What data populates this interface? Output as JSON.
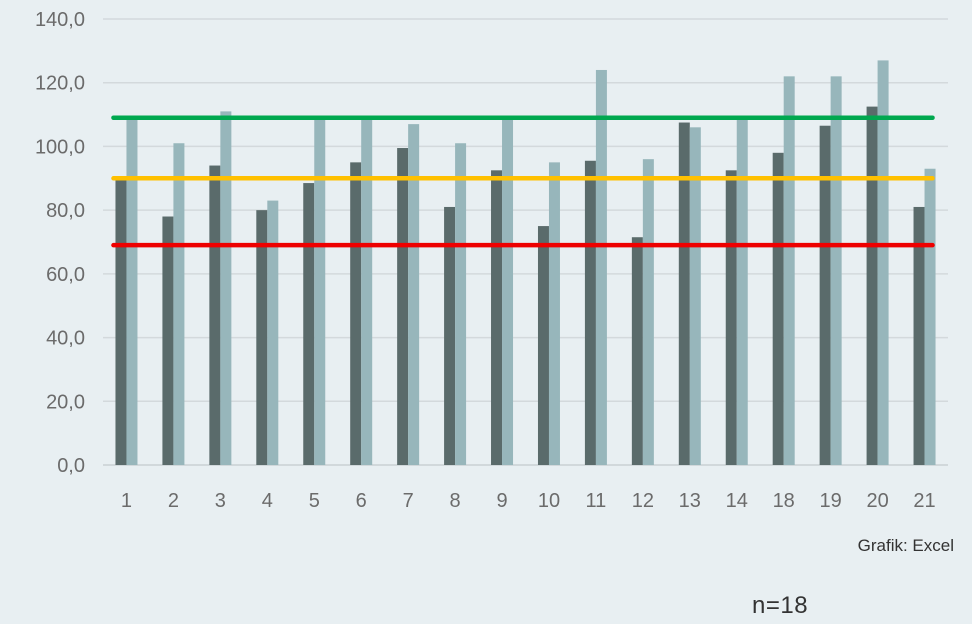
{
  "chart_data": {
    "type": "bar",
    "categories": [
      "1",
      "2",
      "3",
      "4",
      "5",
      "6",
      "7",
      "8",
      "9",
      "10",
      "11",
      "12",
      "13",
      "14",
      "18",
      "19",
      "20",
      "21"
    ],
    "series": [
      {
        "color": "#5a6b6b",
        "values": [
          90,
          78,
          94,
          80,
          88.5,
          95,
          99.5,
          81,
          92.5,
          75,
          95.5,
          71.5,
          107.5,
          92.5,
          98,
          106.5,
          112.5,
          81
        ]
      },
      {
        "color": "#97b6bb",
        "values": [
          109,
          101,
          111,
          83,
          109,
          109,
          107,
          101,
          109,
          95,
          124,
          96,
          106,
          109,
          122,
          122,
          127,
          93
        ]
      }
    ],
    "reference_lines": [
      {
        "value": 109,
        "color": "#00a84f"
      },
      {
        "value": 90,
        "color": "#ffc000"
      },
      {
        "value": 69,
        "color": "#ee0000"
      }
    ],
    "y_ticks": [
      "0,0",
      "20,0",
      "40,0",
      "60,0",
      "80,0",
      "100,0",
      "120,0",
      "140,0"
    ],
    "ylim": [
      0,
      140
    ],
    "grid": true,
    "xlabel": "",
    "ylabel": ""
  },
  "source_note": "Grafik: Excel",
  "n_note": "n=18"
}
